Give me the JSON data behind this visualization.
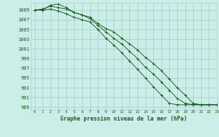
{
  "background_color": "#cceee8",
  "grid_color": "#aacccc",
  "line_color": "#1a5c1a",
  "title": "Graphe pression niveau de la mer (hPa)",
  "xlim": [
    -0.5,
    23
  ],
  "ylim": [
    988.5,
    1010.5
  ],
  "yticks": [
    989,
    991,
    993,
    995,
    997,
    999,
    1001,
    1003,
    1005,
    1007,
    1009
  ],
  "xticks": [
    0,
    1,
    2,
    3,
    4,
    5,
    6,
    7,
    8,
    9,
    10,
    11,
    12,
    13,
    14,
    15,
    16,
    17,
    18,
    19,
    20,
    21,
    22,
    23
  ],
  "series": [
    [
      1009.0,
      1009.2,
      1009.8,
      1009.5,
      1009.2,
      1008.5,
      1008.0,
      1007.5,
      1006.2,
      1005.2,
      1004.5,
      1003.2,
      1002.0,
      1000.8,
      999.2,
      998.0,
      996.5,
      994.8,
      993.0,
      991.5,
      989.8,
      989.5,
      989.5,
      989.5
    ],
    [
      1009.0,
      1009.0,
      1010.0,
      1010.2,
      1009.5,
      1008.5,
      1008.0,
      1007.2,
      1005.8,
      1004.5,
      1003.2,
      1002.0,
      1000.5,
      999.0,
      997.2,
      995.8,
      994.2,
      992.5,
      990.8,
      989.8,
      989.5,
      989.5,
      989.5,
      989.5
    ],
    [
      1009.0,
      1009.0,
      1009.2,
      1008.8,
      1008.2,
      1007.5,
      1007.0,
      1006.5,
      1005.0,
      1003.2,
      1001.8,
      1000.2,
      998.5,
      996.8,
      995.0,
      993.2,
      991.5,
      989.8,
      989.5,
      989.5,
      989.5,
      989.5,
      989.5,
      989.5
    ]
  ]
}
